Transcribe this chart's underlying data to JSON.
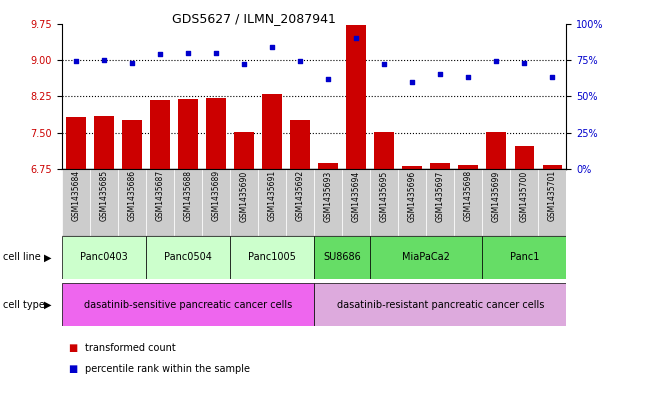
{
  "title": "GDS5627 / ILMN_2087941",
  "samples": [
    "GSM1435684",
    "GSM1435685",
    "GSM1435686",
    "GSM1435687",
    "GSM1435688",
    "GSM1435689",
    "GSM1435690",
    "GSM1435691",
    "GSM1435692",
    "GSM1435693",
    "GSM1435694",
    "GSM1435695",
    "GSM1435696",
    "GSM1435697",
    "GSM1435698",
    "GSM1435699",
    "GSM1435700",
    "GSM1435701"
  ],
  "bar_values": [
    7.82,
    7.84,
    7.76,
    8.17,
    8.2,
    8.21,
    7.52,
    8.3,
    7.77,
    6.87,
    9.73,
    7.52,
    6.82,
    6.88,
    6.84,
    7.52,
    7.22,
    6.84
  ],
  "dot_values": [
    74,
    75,
    73,
    79,
    80,
    80,
    72,
    84,
    74,
    62,
    90,
    72,
    60,
    65,
    63,
    74,
    73,
    63
  ],
  "bar_color": "#cc0000",
  "dot_color": "#0000cc",
  "ylim_left": [
    6.75,
    9.75
  ],
  "ylim_right": [
    0,
    100
  ],
  "yticks_left": [
    6.75,
    7.5,
    8.25,
    9.0,
    9.75
  ],
  "yticks_right": [
    0,
    25,
    50,
    75,
    100
  ],
  "ytick_labels_right": [
    "0%",
    "25%",
    "50%",
    "75%",
    "100%"
  ],
  "hlines": [
    7.5,
    8.25,
    9.0
  ],
  "cell_lines": [
    {
      "label": "Panc0403",
      "start": 0,
      "end": 3,
      "color": "#ccffcc"
    },
    {
      "label": "Panc0504",
      "start": 3,
      "end": 6,
      "color": "#ccffcc"
    },
    {
      "label": "Panc1005",
      "start": 6,
      "end": 9,
      "color": "#ccffcc"
    },
    {
      "label": "SU8686",
      "start": 9,
      "end": 11,
      "color": "#66dd66"
    },
    {
      "label": "MiaPaCa2",
      "start": 11,
      "end": 15,
      "color": "#66dd66"
    },
    {
      "label": "Panc1",
      "start": 15,
      "end": 18,
      "color": "#66dd66"
    }
  ],
  "cell_types": [
    {
      "label": "dasatinib-sensitive pancreatic cancer cells",
      "start": 0,
      "end": 9,
      "color": "#ee66ee"
    },
    {
      "label": "dasatinib-resistant pancreatic cancer cells",
      "start": 9,
      "end": 18,
      "color": "#ddaadd"
    }
  ],
  "legend_items": [
    {
      "label": "transformed count",
      "color": "#cc0000"
    },
    {
      "label": "percentile rank within the sample",
      "color": "#0000cc"
    }
  ],
  "background_color": "#ffffff",
  "sample_col_color": "#cccccc"
}
